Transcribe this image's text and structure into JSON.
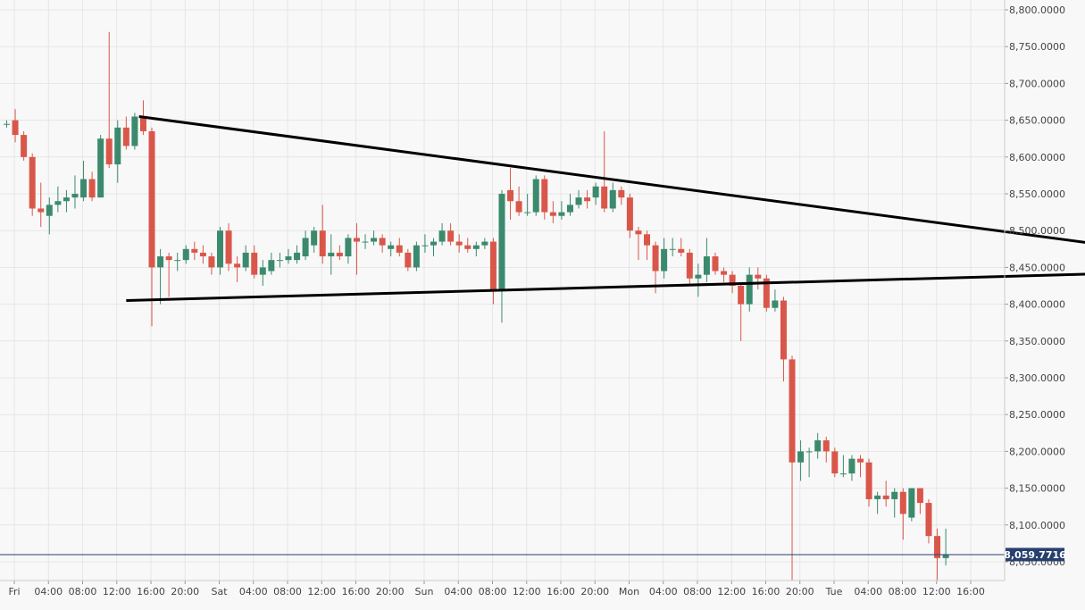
{
  "chart_data": {
    "type": "candlestick",
    "title": "",
    "xlabel": "",
    "ylabel": "",
    "ylim": [
      8020,
      8820
    ],
    "grid": true,
    "colors": {
      "up": "#3b8a6e",
      "down": "#d9574a",
      "grid": "#e6e6e6",
      "trendline": "#000000",
      "current_price": "#27406e"
    },
    "y_ticks": [
      "8,050.0000",
      "8,100.0000",
      "8,150.0000",
      "8,200.0000",
      "8,250.0000",
      "8,300.0000",
      "8,350.0000",
      "8,400.0000",
      "8,450.0000",
      "8,500.0000",
      "8,550.0000",
      "8,600.0000",
      "8,650.0000",
      "8,700.0000",
      "8,750.0000",
      "8,800.0000"
    ],
    "x_tick_labels": [
      "Fri",
      "04:00",
      "08:00",
      "12:00",
      "16:00",
      "20:00",
      "Sat",
      "04:00",
      "08:00",
      "12:00",
      "16:00",
      "20:00",
      "Sun",
      "04:00",
      "08:00",
      "12:00",
      "16:00",
      "20:00",
      "Mon",
      "04:00",
      "08:00",
      "12:00",
      "16:00",
      "20:00",
      "Tue",
      "04:00",
      "08:00",
      "12:00",
      "16:00"
    ],
    "current_price": 8059.7716,
    "current_price_label": "8,059.7716",
    "candle_interval_hours": 1,
    "candles": [
      {
        "o": 8645,
        "h": 8650,
        "l": 8640,
        "c": 8645
      },
      {
        "o": 8650,
        "h": 8665,
        "l": 8620,
        "c": 8630
      },
      {
        "o": 8630,
        "h": 8635,
        "l": 8595,
        "c": 8600
      },
      {
        "o": 8600,
        "h": 8605,
        "l": 8520,
        "c": 8530
      },
      {
        "o": 8530,
        "h": 8565,
        "l": 8505,
        "c": 8525
      },
      {
        "o": 8520,
        "h": 8545,
        "l": 8495,
        "c": 8535
      },
      {
        "o": 8535,
        "h": 8560,
        "l": 8525,
        "c": 8540
      },
      {
        "o": 8540,
        "h": 8555,
        "l": 8525,
        "c": 8545
      },
      {
        "o": 8545,
        "h": 8575,
        "l": 8530,
        "c": 8550
      },
      {
        "o": 8545,
        "h": 8595,
        "l": 8540,
        "c": 8570
      },
      {
        "o": 8570,
        "h": 8580,
        "l": 8540,
        "c": 8545
      },
      {
        "o": 8545,
        "h": 8630,
        "l": 8545,
        "c": 8625
      },
      {
        "o": 8625,
        "h": 8770,
        "l": 8585,
        "c": 8590
      },
      {
        "o": 8590,
        "h": 8650,
        "l": 8565,
        "c": 8640
      },
      {
        "o": 8640,
        "h": 8655,
        "l": 8610,
        "c": 8615
      },
      {
        "o": 8615,
        "h": 8660,
        "l": 8610,
        "c": 8655
      },
      {
        "o": 8655,
        "h": 8677,
        "l": 8630,
        "c": 8635
      },
      {
        "o": 8635,
        "h": 8640,
        "l": 8370,
        "c": 8450
      },
      {
        "o": 8450,
        "h": 8475,
        "l": 8400,
        "c": 8465
      },
      {
        "o": 8465,
        "h": 8470,
        "l": 8410,
        "c": 8460
      },
      {
        "o": 8460,
        "h": 8470,
        "l": 8445,
        "c": 8460
      },
      {
        "o": 8460,
        "h": 8480,
        "l": 8455,
        "c": 8475
      },
      {
        "o": 8475,
        "h": 8485,
        "l": 8460,
        "c": 8470
      },
      {
        "o": 8470,
        "h": 8480,
        "l": 8455,
        "c": 8465
      },
      {
        "o": 8465,
        "h": 8470,
        "l": 8440,
        "c": 8450
      },
      {
        "o": 8450,
        "h": 8505,
        "l": 8440,
        "c": 8500
      },
      {
        "o": 8500,
        "h": 8510,
        "l": 8445,
        "c": 8455
      },
      {
        "o": 8455,
        "h": 8465,
        "l": 8430,
        "c": 8450
      },
      {
        "o": 8450,
        "h": 8480,
        "l": 8445,
        "c": 8470
      },
      {
        "o": 8470,
        "h": 8480,
        "l": 8435,
        "c": 8440
      },
      {
        "o": 8440,
        "h": 8460,
        "l": 8425,
        "c": 8450
      },
      {
        "o": 8445,
        "h": 8470,
        "l": 8440,
        "c": 8460
      },
      {
        "o": 8460,
        "h": 8470,
        "l": 8450,
        "c": 8460
      },
      {
        "o": 8460,
        "h": 8475,
        "l": 8455,
        "c": 8465
      },
      {
        "o": 8460,
        "h": 8480,
        "l": 8455,
        "c": 8470
      },
      {
        "o": 8465,
        "h": 8500,
        "l": 8460,
        "c": 8490
      },
      {
        "o": 8480,
        "h": 8505,
        "l": 8470,
        "c": 8500
      },
      {
        "o": 8500,
        "h": 8535,
        "l": 8455,
        "c": 8465
      },
      {
        "o": 8465,
        "h": 8495,
        "l": 8440,
        "c": 8470
      },
      {
        "o": 8470,
        "h": 8480,
        "l": 8460,
        "c": 8465
      },
      {
        "o": 8465,
        "h": 8495,
        "l": 8455,
        "c": 8490
      },
      {
        "o": 8490,
        "h": 8510,
        "l": 8440,
        "c": 8485
      },
      {
        "o": 8485,
        "h": 8495,
        "l": 8475,
        "c": 8485
      },
      {
        "o": 8485,
        "h": 8500,
        "l": 8480,
        "c": 8490
      },
      {
        "o": 8490,
        "h": 8495,
        "l": 8470,
        "c": 8480
      },
      {
        "o": 8475,
        "h": 8485,
        "l": 8465,
        "c": 8480
      },
      {
        "o": 8480,
        "h": 8490,
        "l": 8465,
        "c": 8470
      },
      {
        "o": 8470,
        "h": 8475,
        "l": 8445,
        "c": 8450
      },
      {
        "o": 8450,
        "h": 8485,
        "l": 8445,
        "c": 8480
      },
      {
        "o": 8480,
        "h": 8495,
        "l": 8470,
        "c": 8480
      },
      {
        "o": 8480,
        "h": 8490,
        "l": 8465,
        "c": 8485
      },
      {
        "o": 8485,
        "h": 8510,
        "l": 8480,
        "c": 8500
      },
      {
        "o": 8500,
        "h": 8510,
        "l": 8480,
        "c": 8485
      },
      {
        "o": 8485,
        "h": 8495,
        "l": 8470,
        "c": 8480
      },
      {
        "o": 8480,
        "h": 8490,
        "l": 8470,
        "c": 8475
      },
      {
        "o": 8475,
        "h": 8485,
        "l": 8465,
        "c": 8480
      },
      {
        "o": 8480,
        "h": 8490,
        "l": 8475,
        "c": 8485
      },
      {
        "o": 8485,
        "h": 8490,
        "l": 8400,
        "c": 8420
      },
      {
        "o": 8420,
        "h": 8555,
        "l": 8375,
        "c": 8550
      },
      {
        "o": 8555,
        "h": 8585,
        "l": 8515,
        "c": 8540
      },
      {
        "o": 8540,
        "h": 8560,
        "l": 8520,
        "c": 8525
      },
      {
        "o": 8525,
        "h": 8550,
        "l": 8520,
        "c": 8525
      },
      {
        "o": 8525,
        "h": 8575,
        "l": 8520,
        "c": 8570
      },
      {
        "o": 8570,
        "h": 8575,
        "l": 8515,
        "c": 8525
      },
      {
        "o": 8525,
        "h": 8540,
        "l": 8510,
        "c": 8520
      },
      {
        "o": 8520,
        "h": 8540,
        "l": 8515,
        "c": 8525
      },
      {
        "o": 8525,
        "h": 8550,
        "l": 8520,
        "c": 8535
      },
      {
        "o": 8535,
        "h": 8555,
        "l": 8530,
        "c": 8545
      },
      {
        "o": 8545,
        "h": 8555,
        "l": 8530,
        "c": 8540
      },
      {
        "o": 8545,
        "h": 8565,
        "l": 8535,
        "c": 8560
      },
      {
        "o": 8560,
        "h": 8635,
        "l": 8525,
        "c": 8530
      },
      {
        "o": 8530,
        "h": 8565,
        "l": 8525,
        "c": 8555
      },
      {
        "o": 8555,
        "h": 8560,
        "l": 8535,
        "c": 8545
      },
      {
        "o": 8545,
        "h": 8550,
        "l": 8490,
        "c": 8500
      },
      {
        "o": 8500,
        "h": 8505,
        "l": 8460,
        "c": 8495
      },
      {
        "o": 8495,
        "h": 8500,
        "l": 8460,
        "c": 8480
      },
      {
        "o": 8480,
        "h": 8485,
        "l": 8415,
        "c": 8445
      },
      {
        "o": 8445,
        "h": 8490,
        "l": 8435,
        "c": 8475
      },
      {
        "o": 8475,
        "h": 8490,
        "l": 8465,
        "c": 8475
      },
      {
        "o": 8475,
        "h": 8490,
        "l": 8465,
        "c": 8470
      },
      {
        "o": 8470,
        "h": 8475,
        "l": 8425,
        "c": 8435
      },
      {
        "o": 8435,
        "h": 8455,
        "l": 8410,
        "c": 8440
      },
      {
        "o": 8440,
        "h": 8490,
        "l": 8430,
        "c": 8465
      },
      {
        "o": 8465,
        "h": 8470,
        "l": 8440,
        "c": 8445
      },
      {
        "o": 8445,
        "h": 8450,
        "l": 8430,
        "c": 8440
      },
      {
        "o": 8440,
        "h": 8445,
        "l": 8415,
        "c": 8425
      },
      {
        "o": 8425,
        "h": 8430,
        "l": 8350,
        "c": 8400
      },
      {
        "o": 8400,
        "h": 8450,
        "l": 8390,
        "c": 8440
      },
      {
        "o": 8440,
        "h": 8450,
        "l": 8420,
        "c": 8435
      },
      {
        "o": 8435,
        "h": 8440,
        "l": 8390,
        "c": 8395
      },
      {
        "o": 8395,
        "h": 8420,
        "l": 8390,
        "c": 8405
      },
      {
        "o": 8405,
        "h": 8410,
        "l": 8295,
        "c": 8325
      },
      {
        "o": 8325,
        "h": 8330,
        "l": 8025,
        "c": 8185
      },
      {
        "o": 8185,
        "h": 8215,
        "l": 8160,
        "c": 8200
      },
      {
        "o": 8200,
        "h": 8205,
        "l": 8165,
        "c": 8200
      },
      {
        "o": 8200,
        "h": 8225,
        "l": 8190,
        "c": 8215
      },
      {
        "o": 8215,
        "h": 8220,
        "l": 8185,
        "c": 8200
      },
      {
        "o": 8200,
        "h": 8205,
        "l": 8165,
        "c": 8170
      },
      {
        "o": 8170,
        "h": 8195,
        "l": 8165,
        "c": 8170
      },
      {
        "o": 8170,
        "h": 8195,
        "l": 8160,
        "c": 8190
      },
      {
        "o": 8190,
        "h": 8195,
        "l": 8165,
        "c": 8185
      },
      {
        "o": 8185,
        "h": 8190,
        "l": 8125,
        "c": 8135
      },
      {
        "o": 8135,
        "h": 8145,
        "l": 8115,
        "c": 8140
      },
      {
        "o": 8140,
        "h": 8160,
        "l": 8125,
        "c": 8135
      },
      {
        "o": 8135,
        "h": 8150,
        "l": 8110,
        "c": 8145
      },
      {
        "o": 8145,
        "h": 8150,
        "l": 8080,
        "c": 8115
      },
      {
        "o": 8110,
        "h": 8150,
        "l": 8105,
        "c": 8150
      },
      {
        "o": 8150,
        "h": 8150,
        "l": 8115,
        "c": 8130
      },
      {
        "o": 8130,
        "h": 8135,
        "l": 8075,
        "c": 8085
      },
      {
        "o": 8085,
        "h": 8095,
        "l": 8025,
        "c": 8055
      },
      {
        "o": 8055,
        "h": 8095,
        "l": 8045,
        "c": 8059.77
      }
    ],
    "trendlines": [
      {
        "name": "upper",
        "points": [
          {
            "candle": 15.5,
            "price": 8655
          },
          {
            "candle": 127,
            "price": 8483
          }
        ]
      },
      {
        "name": "lower",
        "points": [
          {
            "candle": 14,
            "price": 8405
          },
          {
            "candle": 127,
            "price": 8441
          }
        ]
      }
    ]
  }
}
